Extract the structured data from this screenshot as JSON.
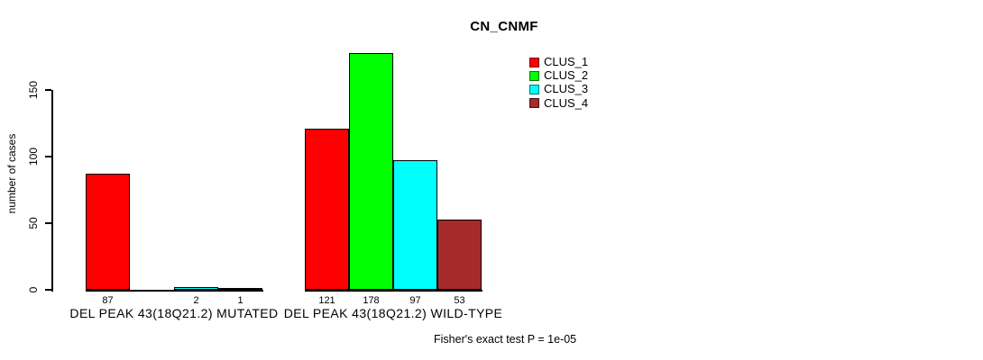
{
  "title": "CN_CNMF",
  "y_axis": {
    "label": "number of cases",
    "ticks": [
      0,
      50,
      100,
      150
    ]
  },
  "legend": {
    "items": [
      {
        "name": "CLUS_1",
        "label": "CLUS_1",
        "color": "#FF0000"
      },
      {
        "name": "CLUS_2",
        "label": "CLUS_2",
        "color": "#00FF00"
      },
      {
        "name": "CLUS_3",
        "label": "CLUS_3",
        "color": "#00FFFF"
      },
      {
        "name": "CLUS_4",
        "label": "CLUS_4",
        "color": "#A52A2A"
      }
    ]
  },
  "footnote": "Fisher's exact test P = 1e-05",
  "chart_data": {
    "type": "bar",
    "title": "CN_CNMF",
    "xlabel": "",
    "ylabel": "number of cases",
    "ylim": [
      0,
      150
    ],
    "yticks": [
      0,
      50,
      100,
      150
    ],
    "grid": false,
    "legend_position": "top-right",
    "series_names": [
      "CLUS_1",
      "CLUS_2",
      "CLUS_3",
      "CLUS_4"
    ],
    "series_colors": [
      "#FF0000",
      "#00FF00",
      "#00FFFF",
      "#A52A2A"
    ],
    "groups": [
      {
        "label": "DEL PEAK 43(18Q21.2) MUTATED",
        "values": [
          87,
          0,
          2,
          1
        ]
      },
      {
        "label": "DEL PEAK 43(18Q21.2) WILD-TYPE",
        "values": [
          121,
          178,
          97,
          53
        ]
      }
    ],
    "bar_value_labels_shown": [
      "87",
      "2",
      "1",
      "121",
      "178",
      "97",
      "53"
    ],
    "annotation": "Fisher's exact test P = 1e-05"
  }
}
